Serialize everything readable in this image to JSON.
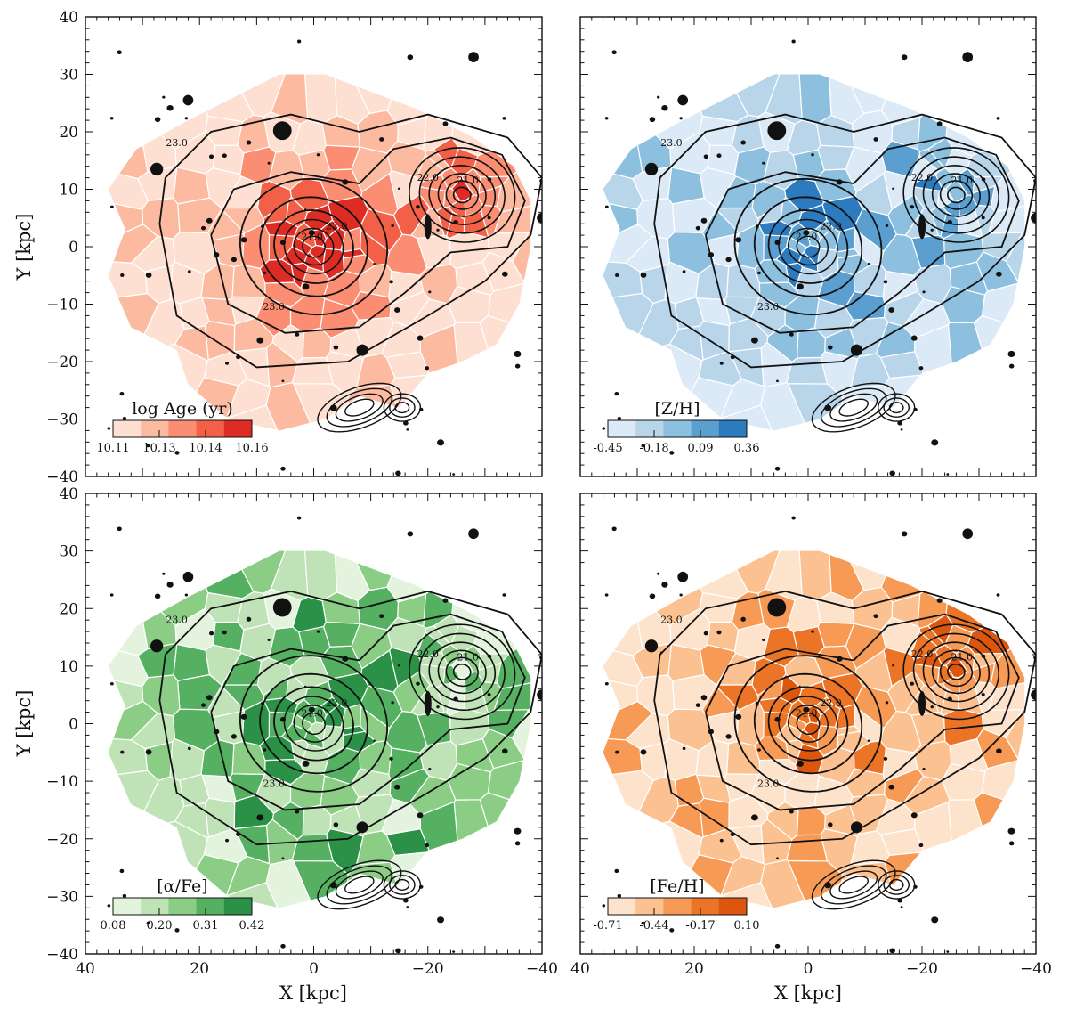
{
  "figure": {
    "x_axis_label": "X [kpc]",
    "y_axis_label": "Y [kpc]",
    "xlim": [
      40,
      -40
    ],
    "ylim": [
      -40,
      40
    ],
    "x_ticks": [
      40,
      20,
      0,
      -20,
      -40
    ],
    "y_ticks": [
      40,
      30,
      20,
      10,
      0,
      -10,
      -20,
      -30,
      -40
    ],
    "contour_labels": [
      "21.0",
      "22.0",
      "23.0"
    ]
  },
  "chart_data": [
    {
      "type": "heatmap",
      "panel": "top-left",
      "colorbar_title": "log Age (yr)",
      "colorbar_ticks": [
        "10.11",
        "10.13",
        "10.14",
        "10.16"
      ],
      "colorbar_colors": [
        "#fde0d2",
        "#fcbba1",
        "#fb8e72",
        "#f26048",
        "#dd2c24"
      ],
      "legend_position": "bottom-left"
    },
    {
      "type": "heatmap",
      "panel": "top-right",
      "colorbar_title": "[Z/H]",
      "colorbar_ticks": [
        "-0.45",
        "-0.18",
        "0.09",
        "0.36"
      ],
      "colorbar_colors": [
        "#dce9f6",
        "#b8d5ea",
        "#8dbfdf",
        "#5a9fd0",
        "#2d7bbf"
      ],
      "legend_position": "bottom-left"
    },
    {
      "type": "heatmap",
      "panel": "bottom-left",
      "colorbar_title": "[α/Fe]",
      "colorbar_ticks": [
        "0.08",
        "0.20",
        "0.31",
        "0.42"
      ],
      "colorbar_colors": [
        "#e3f3de",
        "#bfe3b6",
        "#8ccd86",
        "#55b062",
        "#2a9147"
      ],
      "legend_position": "bottom-left"
    },
    {
      "type": "heatmap",
      "panel": "bottom-right",
      "colorbar_title": "[Fe/H]",
      "colorbar_ticks": [
        "-0.71",
        "-0.44",
        "-0.17",
        "0.10"
      ],
      "colorbar_colors": [
        "#fde3cc",
        "#fbc190",
        "#f79a55",
        "#ec7427",
        "#dd560e"
      ],
      "legend_position": "bottom-left"
    }
  ]
}
